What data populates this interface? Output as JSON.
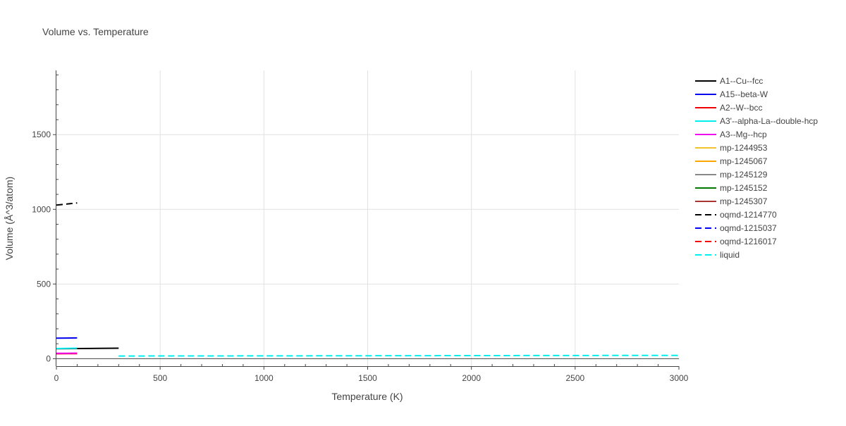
{
  "chart_data": {
    "type": "line",
    "title": "Volume vs. Temperature",
    "xlabel": "Temperature (K)",
    "ylabel": "Volume (Å^3/atom)",
    "xlim": [
      0,
      3000
    ],
    "ylim": [
      -50,
      1930
    ],
    "xticks": [
      0,
      500,
      1000,
      1500,
      2000,
      2500,
      3000
    ],
    "yticks": [
      0,
      500,
      1000,
      1500
    ],
    "grid": true,
    "legend_position": "right",
    "series": [
      {
        "name": "A1--Cu--fcc",
        "color": "#000000",
        "dash": "solid",
        "x": [
          0,
          100,
          200,
          300
        ],
        "y": [
          67,
          68,
          69,
          70
        ]
      },
      {
        "name": "A15--beta-W",
        "color": "#0000ee",
        "dash": "solid",
        "x": [
          0,
          50,
          100
        ],
        "y": [
          137,
          138,
          139
        ]
      },
      {
        "name": "A2--W--bcc",
        "color": "#ee0000",
        "dash": "solid",
        "x": [
          0,
          50,
          100
        ],
        "y": [
          33,
          33.5,
          34
        ]
      },
      {
        "name": "A3'--alpha-La--double-hcp",
        "color": "#00eeee",
        "dash": "solid",
        "x": [
          0,
          50,
          100
        ],
        "y": [
          68,
          69,
          70
        ]
      },
      {
        "name": "A3--Mg--hcp",
        "color": "#ee00ee",
        "dash": "solid",
        "x": [
          0,
          50,
          100
        ],
        "y": [
          36,
          36.5,
          37
        ]
      },
      {
        "name": "mp-1244953",
        "color": "#f2c12e",
        "dash": "solid",
        "x": [],
        "y": []
      },
      {
        "name": "mp-1245067",
        "color": "#ffa500",
        "dash": "solid",
        "x": [],
        "y": []
      },
      {
        "name": "mp-1245129",
        "color": "#888888",
        "dash": "solid",
        "x": [],
        "y": []
      },
      {
        "name": "mp-1245152",
        "color": "#007700",
        "dash": "solid",
        "x": [],
        "y": []
      },
      {
        "name": "mp-1245307",
        "color": "#aa3333",
        "dash": "solid",
        "x": [],
        "y": []
      },
      {
        "name": "oqmd-1214770",
        "color": "#000000",
        "dash": "dash",
        "x": [
          0,
          50,
          100
        ],
        "y": [
          1028,
          1035,
          1043
        ]
      },
      {
        "name": "oqmd-1215037",
        "color": "#0000ee",
        "dash": "dash",
        "x": [],
        "y": []
      },
      {
        "name": "oqmd-1216017",
        "color": "#ee0000",
        "dash": "dash",
        "x": [],
        "y": []
      },
      {
        "name": "liquid",
        "color": "#00eeee",
        "dash": "dash",
        "x": [
          300,
          1000,
          2000,
          3000
        ],
        "y": [
          18,
          19,
          20.5,
          22
        ]
      }
    ]
  }
}
